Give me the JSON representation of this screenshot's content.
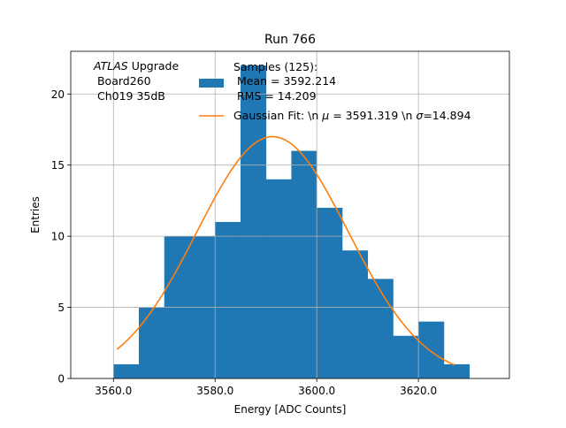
{
  "chart_data": {
    "type": "bar",
    "title": "Run 766",
    "xlabel": "Energy [ADC Counts]",
    "ylabel": "Entries",
    "xlim": [
      3551.6,
      3637.9
    ],
    "ylim": [
      0,
      23
    ],
    "x_ticks": [
      3560,
      3580,
      3600,
      3620
    ],
    "x_tick_labels": [
      "3560.0",
      "3580.0",
      "3600.0",
      "3620.0"
    ],
    "y_ticks": [
      0,
      5,
      10,
      15,
      20
    ],
    "y_tick_labels": [
      "0",
      "5",
      "10",
      "15",
      "20"
    ],
    "grid": true,
    "bin_edges": [
      3560.0,
      3565.0,
      3570.0,
      3575.0,
      3580.0,
      3585.0,
      3590.0,
      3595.0,
      3600.0,
      3605.0,
      3610.0,
      3615.0,
      3620.0,
      3625.0,
      3630.0
    ],
    "counts": [
      1,
      5,
      10,
      10,
      11,
      22,
      14,
      16,
      12,
      9,
      7,
      3,
      4,
      1
    ],
    "histogram_color": "#1f77b4",
    "fit": {
      "mu": 3591.319,
      "sigma": 14.894,
      "amplitude": 17.0,
      "x_range": [
        3560.7,
        3627.1
      ],
      "color": "#ff7f0e"
    },
    "annotation": {
      "line1_italic": "ATLAS",
      "line1_rest": " Upgrade",
      "line2": " Board260",
      "line3": " Ch019 35dB"
    },
    "legend": {
      "position": "top-right",
      "samples": {
        "line1": "Samples (125):",
        "line2": " Mean = 3592.214",
        "line3": " RMS = 14.209"
      },
      "fit": {
        "prefix": "Gaussian Fit: \\n ",
        "mu_symbol": "μ",
        "mid": " = 3591.319 \\n ",
        "sigma_symbol": "σ",
        "suffix": "=14.894"
      }
    }
  }
}
